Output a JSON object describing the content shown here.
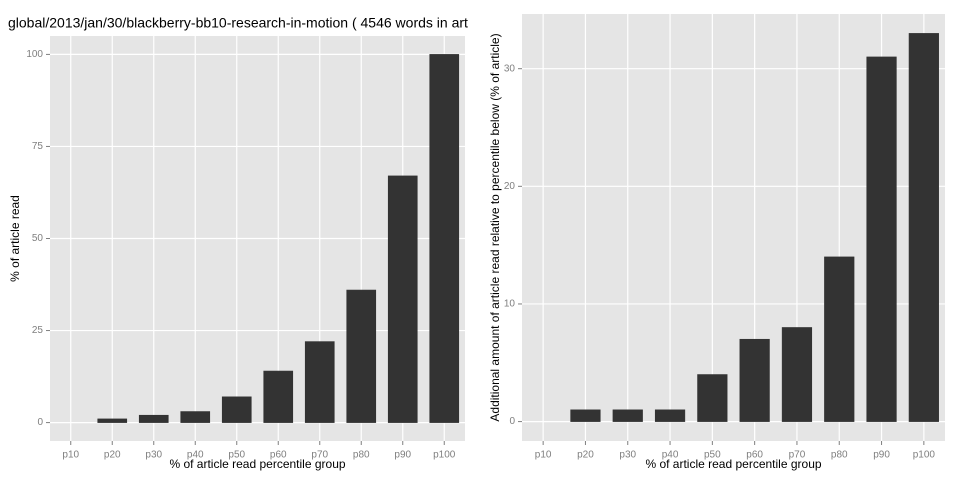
{
  "chart_data": [
    {
      "type": "bar",
      "title": "global/2013/jan/30/blackberry-bb10-research-in-motion ( 4546 words in art",
      "x_label": "% of article read percentile group",
      "y_label": "% of article read",
      "categories": [
        "p10",
        "p20",
        "p30",
        "p40",
        "p50",
        "p60",
        "p70",
        "p80",
        "p90",
        "p100"
      ],
      "values": [
        0,
        1,
        2,
        3,
        7,
        14,
        22,
        36,
        67,
        100
      ],
      "color": "#333333",
      "ylim": [
        -5,
        105
      ],
      "yticks": [
        0,
        25,
        50,
        75,
        100
      ],
      "grid": true
    },
    {
      "type": "bar",
      "x_label": "% of article read percentile group",
      "y_label": "Additional amount of article read relative to percentile below (% of article)",
      "categories": [
        "p10",
        "p20",
        "p30",
        "p40",
        "p50",
        "p60",
        "p70",
        "p80",
        "p90",
        "p100"
      ],
      "values": [
        0,
        1,
        1,
        1,
        4,
        7,
        8,
        14,
        31,
        33
      ],
      "color": "#333333",
      "ylim": [
        -1.65,
        34.65
      ],
      "yticks": [
        0,
        10,
        20,
        30
      ],
      "grid": true
    }
  ]
}
